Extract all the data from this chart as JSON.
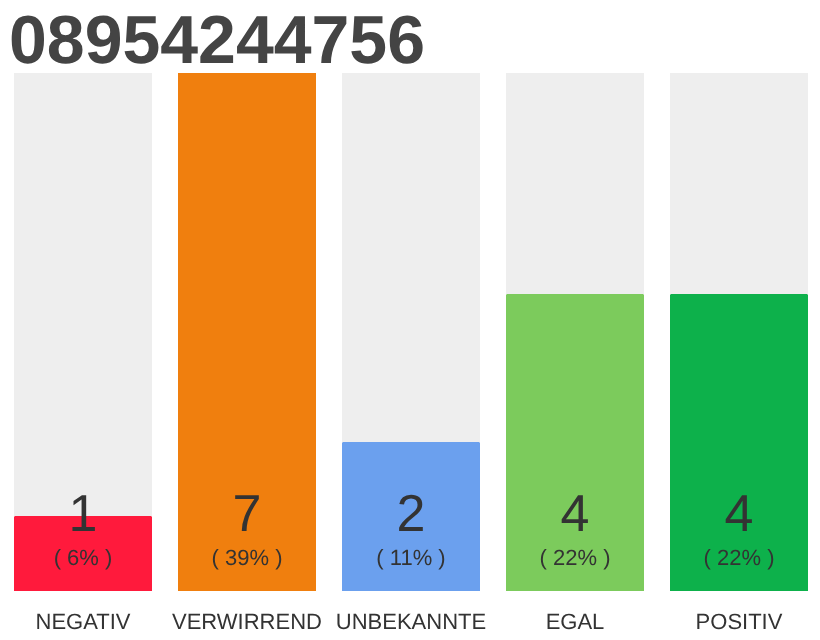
{
  "chart_data": {
    "type": "bar",
    "title": "08954244756",
    "categories": [
      "NEGATIV",
      "VERWIRREND",
      "UNBEKANNTE",
      "EGAL",
      "POSITIV"
    ],
    "values": [
      1,
      7,
      2,
      4,
      4
    ],
    "colors": [
      "#ff1a3c",
      "#f07f0e",
      "#6ba0ee",
      "#7ccb5c",
      "#0db14b"
    ],
    "value_labels": [
      "1",
      "7",
      "2",
      "4",
      "4"
    ],
    "annotations": [
      {
        "text": "( 6% )",
        "x": "NEGATIV",
        "y": 0
      },
      {
        "text": "( 39% )",
        "x": "VERWIRREND",
        "y": 0
      },
      {
        "text": "( 11% )",
        "x": "UNBEKANNTE",
        "y": 0
      },
      {
        "text": "( 22% )",
        "x": "EGAL",
        "y": 0
      },
      {
        "text": "( 22% )",
        "x": "POSITIV",
        "y": 0
      }
    ]
  }
}
